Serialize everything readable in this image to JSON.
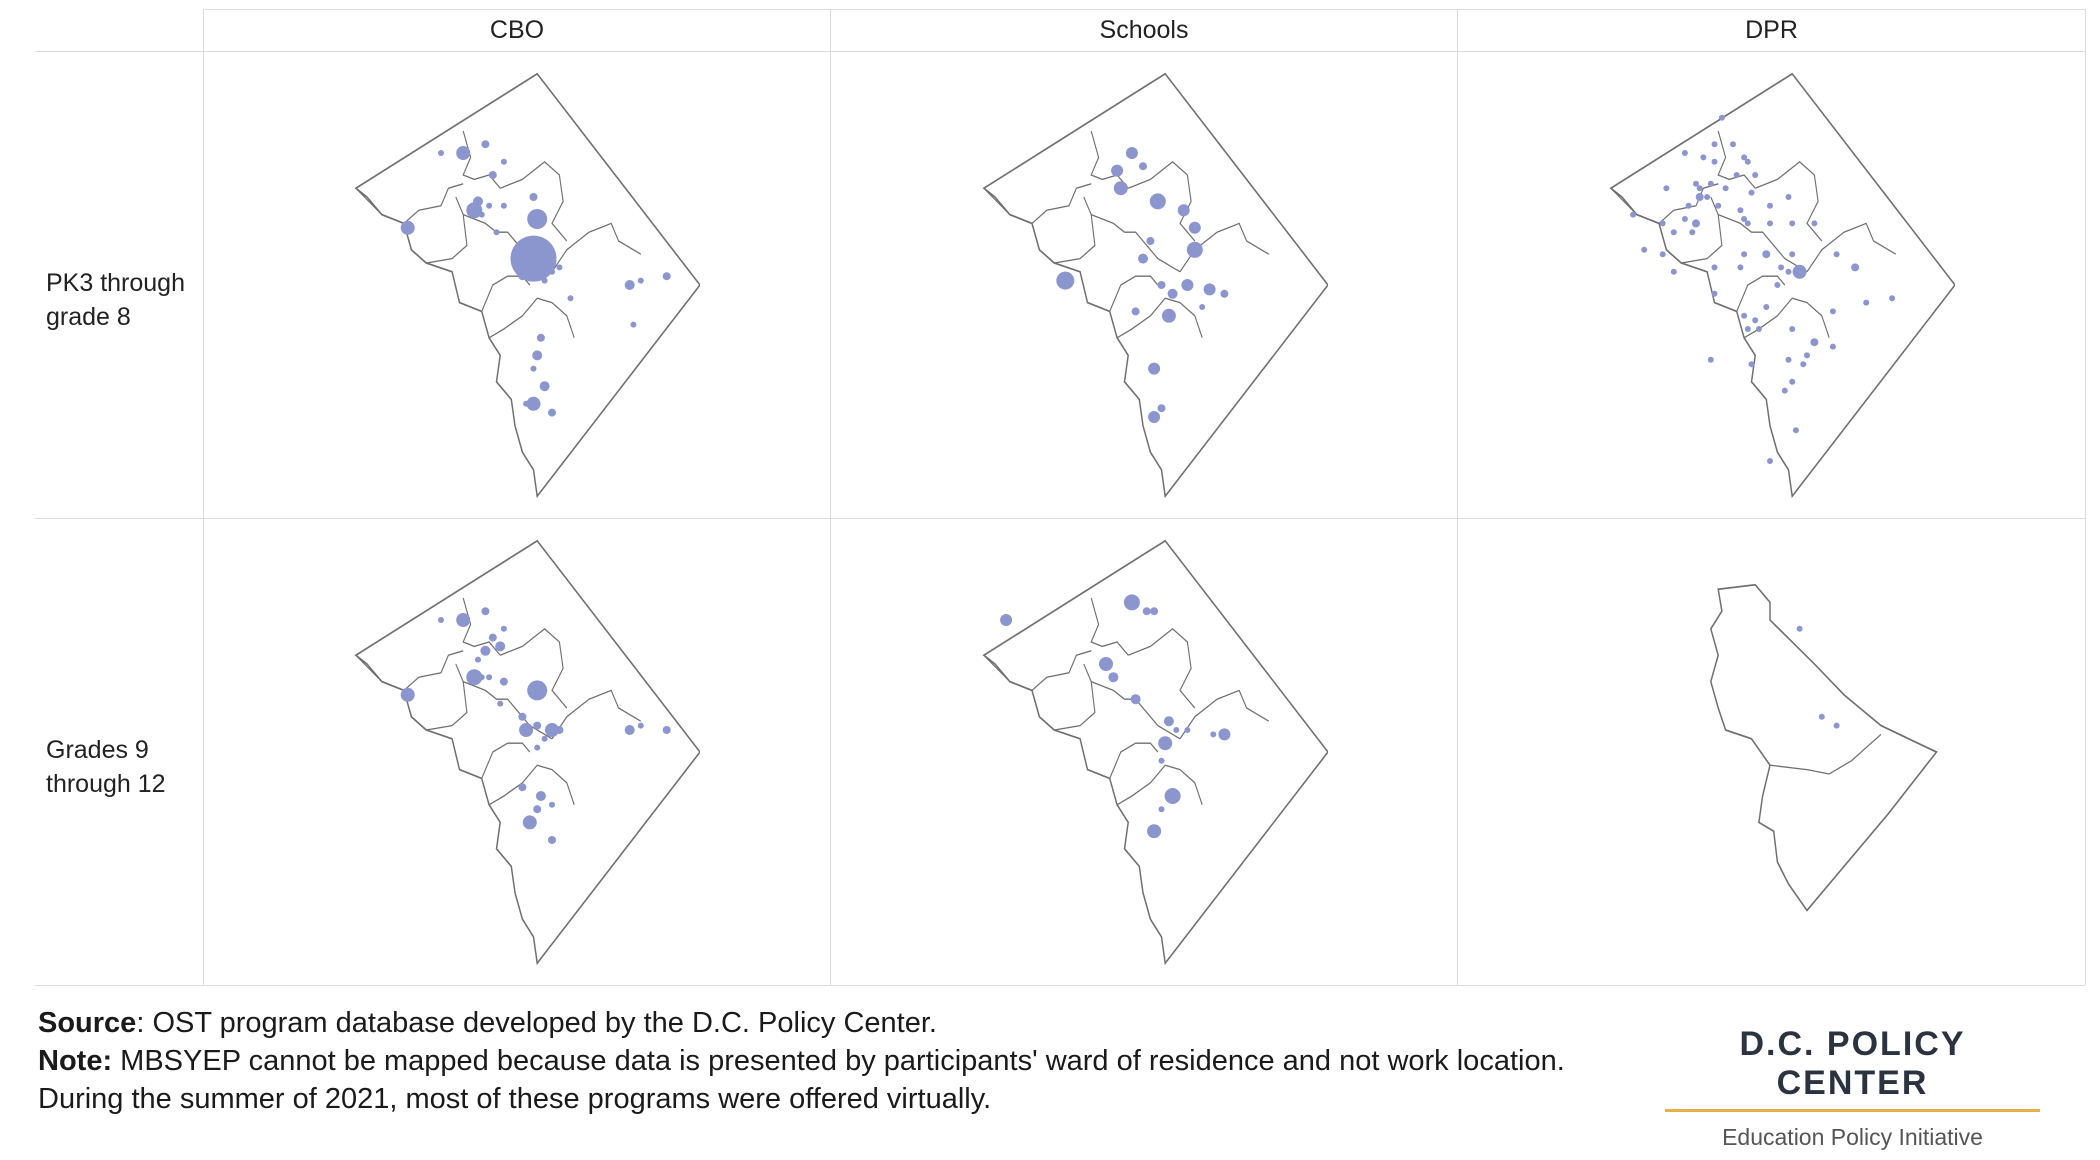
{
  "columns": [
    "CBO",
    "Schools",
    "DPR"
  ],
  "rows": [
    {
      "label_line1": "PK3 through",
      "label_line2": "grade 8"
    },
    {
      "label_line1": "Grades 9",
      "label_line2": "through 12"
    }
  ],
  "colors": {
    "dot": "#8b96cf",
    "outline": "#6f6f6f",
    "grid": "#dcdcdc",
    "brand_accent": "#e9b04a"
  },
  "footer": {
    "source_label": "Source",
    "source_text": ": OST program database developed by the D.C. Policy Center.",
    "note_label": "Note:",
    "note_text": " MBSYEP cannot be mapped because data is presented by participants' ward of residence and not work location. During the summer of 2021, most of these programs were offered virtually."
  },
  "brand": {
    "name": "D.C. POLICY CENTER",
    "subtitle": "Education Policy Initiative"
  },
  "map_panels": [
    {
      "column": "CBO",
      "row": "PK3 through grade 8",
      "region": "full",
      "dots": [
        [
          0.42,
          0.18,
          4
        ],
        [
          0.36,
          0.2,
          7
        ],
        [
          0.3,
          0.2,
          3
        ],
        [
          0.47,
          0.22,
          3
        ],
        [
          0.44,
          0.25,
          4
        ],
        [
          0.55,
          0.3,
          4
        ],
        [
          0.4,
          0.31,
          5
        ],
        [
          0.43,
          0.32,
          3
        ],
        [
          0.47,
          0.32,
          3
        ],
        [
          0.39,
          0.33,
          8
        ],
        [
          0.41,
          0.34,
          3
        ],
        [
          0.21,
          0.37,
          7
        ],
        [
          0.56,
          0.35,
          10
        ],
        [
          0.45,
          0.38,
          3
        ],
        [
          0.55,
          0.44,
          23
        ],
        [
          0.52,
          0.48,
          4
        ],
        [
          0.58,
          0.49,
          3
        ],
        [
          0.6,
          0.47,
          3
        ],
        [
          0.62,
          0.46,
          3
        ],
        [
          0.81,
          0.5,
          5
        ],
        [
          0.84,
          0.49,
          3
        ],
        [
          0.91,
          0.48,
          4
        ],
        [
          0.65,
          0.53,
          3
        ],
        [
          0.82,
          0.59,
          3
        ],
        [
          0.57,
          0.62,
          4
        ],
        [
          0.56,
          0.66,
          5
        ],
        [
          0.55,
          0.69,
          3
        ],
        [
          0.58,
          0.73,
          5
        ],
        [
          0.53,
          0.77,
          3
        ],
        [
          0.55,
          0.77,
          7
        ],
        [
          0.6,
          0.79,
          4
        ]
      ]
    },
    {
      "column": "Schools",
      "row": "PK3 through grade 8",
      "region": "full",
      "dots": [
        [
          0.47,
          0.2,
          6
        ],
        [
          0.43,
          0.24,
          6
        ],
        [
          0.5,
          0.23,
          4
        ],
        [
          0.44,
          0.28,
          7
        ],
        [
          0.54,
          0.31,
          8
        ],
        [
          0.61,
          0.33,
          6
        ],
        [
          0.64,
          0.37,
          6
        ],
        [
          0.52,
          0.4,
          4
        ],
        [
          0.64,
          0.42,
          8
        ],
        [
          0.5,
          0.44,
          5
        ],
        [
          0.29,
          0.49,
          9
        ],
        [
          0.55,
          0.5,
          4
        ],
        [
          0.62,
          0.5,
          6
        ],
        [
          0.68,
          0.51,
          6
        ],
        [
          0.72,
          0.52,
          4
        ],
        [
          0.58,
          0.52,
          5
        ],
        [
          0.48,
          0.56,
          4
        ],
        [
          0.57,
          0.57,
          7
        ],
        [
          0.66,
          0.55,
          3
        ],
        [
          0.53,
          0.69,
          6
        ],
        [
          0.55,
          0.78,
          4
        ],
        [
          0.53,
          0.8,
          6
        ]
      ]
    },
    {
      "column": "DPR",
      "row": "PK3 through grade 8",
      "region": "full",
      "dots": [
        [
          0.37,
          0.12,
          3
        ],
        [
          0.35,
          0.18,
          3
        ],
        [
          0.4,
          0.18,
          3
        ],
        [
          0.27,
          0.2,
          3
        ],
        [
          0.32,
          0.21,
          3
        ],
        [
          0.35,
          0.22,
          3
        ],
        [
          0.43,
          0.21,
          3
        ],
        [
          0.44,
          0.22,
          3
        ],
        [
          0.41,
          0.25,
          3
        ],
        [
          0.46,
          0.25,
          3
        ],
        [
          0.34,
          0.27,
          3
        ],
        [
          0.3,
          0.27,
          3
        ],
        [
          0.38,
          0.28,
          3
        ],
        [
          0.31,
          0.28,
          3
        ],
        [
          0.22,
          0.28,
          3
        ],
        [
          0.31,
          0.3,
          4
        ],
        [
          0.33,
          0.3,
          3
        ],
        [
          0.45,
          0.29,
          3
        ],
        [
          0.55,
          0.3,
          3
        ],
        [
          0.5,
          0.32,
          3
        ],
        [
          0.28,
          0.32,
          3
        ],
        [
          0.36,
          0.32,
          3
        ],
        [
          0.42,
          0.33,
          3
        ],
        [
          0.13,
          0.34,
          3
        ],
        [
          0.21,
          0.36,
          3
        ],
        [
          0.27,
          0.35,
          3
        ],
        [
          0.3,
          0.36,
          4
        ],
        [
          0.43,
          0.35,
          3
        ],
        [
          0.44,
          0.36,
          3
        ],
        [
          0.5,
          0.36,
          3
        ],
        [
          0.56,
          0.36,
          3
        ],
        [
          0.62,
          0.36,
          3
        ],
        [
          0.24,
          0.38,
          3
        ],
        [
          0.29,
          0.38,
          3
        ],
        [
          0.16,
          0.42,
          3
        ],
        [
          0.21,
          0.43,
          3
        ],
        [
          0.43,
          0.43,
          3
        ],
        [
          0.49,
          0.43,
          4
        ],
        [
          0.56,
          0.43,
          3
        ],
        [
          0.68,
          0.43,
          3
        ],
        [
          0.24,
          0.47,
          3
        ],
        [
          0.35,
          0.46,
          3
        ],
        [
          0.42,
          0.46,
          3
        ],
        [
          0.53,
          0.46,
          3
        ],
        [
          0.55,
          0.47,
          3
        ],
        [
          0.58,
          0.47,
          7
        ],
        [
          0.73,
          0.46,
          4
        ],
        [
          0.35,
          0.52,
          3
        ],
        [
          0.52,
          0.5,
          3
        ],
        [
          0.83,
          0.53,
          3
        ],
        [
          0.76,
          0.54,
          3
        ],
        [
          0.67,
          0.56,
          3
        ],
        [
          0.49,
          0.55,
          3
        ],
        [
          0.43,
          0.57,
          3
        ],
        [
          0.46,
          0.58,
          3
        ],
        [
          0.44,
          0.6,
          3
        ],
        [
          0.47,
          0.6,
          3
        ],
        [
          0.56,
          0.6,
          3
        ],
        [
          0.62,
          0.63,
          4
        ],
        [
          0.67,
          0.64,
          3
        ],
        [
          0.6,
          0.66,
          3
        ],
        [
          0.55,
          0.67,
          3
        ],
        [
          0.59,
          0.68,
          3
        ],
        [
          0.34,
          0.67,
          3
        ],
        [
          0.45,
          0.68,
          3
        ],
        [
          0.56,
          0.72,
          3
        ],
        [
          0.54,
          0.74,
          3
        ],
        [
          0.57,
          0.83,
          3
        ],
        [
          0.5,
          0.9,
          3
        ]
      ]
    },
    {
      "column": "CBO",
      "row": "Grades 9 through 12",
      "region": "full",
      "dots": [
        [
          0.42,
          0.18,
          4
        ],
        [
          0.36,
          0.2,
          7
        ],
        [
          0.3,
          0.2,
          3
        ],
        [
          0.47,
          0.22,
          3
        ],
        [
          0.44,
          0.24,
          4
        ],
        [
          0.46,
          0.26,
          5
        ],
        [
          0.42,
          0.27,
          5
        ],
        [
          0.4,
          0.29,
          3
        ],
        [
          0.43,
          0.33,
          3
        ],
        [
          0.39,
          0.33,
          8
        ],
        [
          0.41,
          0.33,
          3
        ],
        [
          0.47,
          0.34,
          4
        ],
        [
          0.21,
          0.37,
          7
        ],
        [
          0.56,
          0.36,
          10
        ],
        [
          0.46,
          0.39,
          3
        ],
        [
          0.52,
          0.42,
          4
        ],
        [
          0.53,
          0.45,
          7
        ],
        [
          0.56,
          0.44,
          4
        ],
        [
          0.6,
          0.45,
          7
        ],
        [
          0.62,
          0.45,
          4
        ],
        [
          0.58,
          0.47,
          3
        ],
        [
          0.56,
          0.49,
          3
        ],
        [
          0.81,
          0.45,
          5
        ],
        [
          0.84,
          0.44,
          3
        ],
        [
          0.91,
          0.45,
          4
        ],
        [
          0.52,
          0.58,
          4
        ],
        [
          0.57,
          0.6,
          5
        ],
        [
          0.56,
          0.63,
          4
        ],
        [
          0.6,
          0.62,
          3
        ],
        [
          0.54,
          0.66,
          7
        ],
        [
          0.6,
          0.7,
          4
        ]
      ]
    },
    {
      "column": "Schools",
      "row": "Grades 9 through 12",
      "region": "full",
      "dots": [
        [
          0.13,
          0.2,
          6
        ],
        [
          0.47,
          0.16,
          8
        ],
        [
          0.51,
          0.18,
          4
        ],
        [
          0.53,
          0.18,
          4
        ],
        [
          0.4,
          0.3,
          7
        ],
        [
          0.42,
          0.33,
          5
        ],
        [
          0.48,
          0.38,
          5
        ],
        [
          0.57,
          0.43,
          5
        ],
        [
          0.62,
          0.45,
          3
        ],
        [
          0.69,
          0.46,
          3
        ],
        [
          0.72,
          0.46,
          6
        ],
        [
          0.59,
          0.45,
          3
        ],
        [
          0.56,
          0.48,
          7
        ],
        [
          0.55,
          0.52,
          3
        ],
        [
          0.58,
          0.6,
          8
        ],
        [
          0.55,
          0.63,
          3
        ],
        [
          0.53,
          0.68,
          7
        ]
      ]
    },
    {
      "column": "DPR",
      "row": "Grades 9 through 12",
      "region": "partial",
      "dots": [
        [
          0.58,
          0.22,
          3
        ],
        [
          0.64,
          0.42,
          3
        ],
        [
          0.68,
          0.44,
          3
        ]
      ]
    }
  ]
}
